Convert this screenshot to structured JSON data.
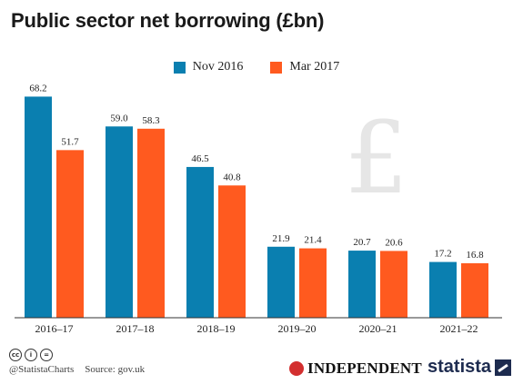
{
  "chart_data": {
    "type": "bar",
    "title": "Public sector net borrowing (£bn)",
    "categories": [
      "2016–17",
      "2017–18",
      "2018–19",
      "2019–20",
      "2020–21",
      "2021–22"
    ],
    "series": [
      {
        "name": "Nov 2016",
        "values": [
          68.2,
          59.0,
          46.5,
          21.9,
          20.7,
          17.2
        ],
        "color": "#0a7fb0"
      },
      {
        "name": "Mar 2017",
        "values": [
          51.7,
          58.3,
          40.8,
          21.4,
          20.6,
          16.8
        ],
        "color": "#ff5a1f"
      }
    ],
    "value_labels": [
      [
        "68.2",
        "59.0",
        "46.5",
        "21.9",
        "20.7",
        "17.2"
      ],
      [
        "51.7",
        "58.3",
        "40.8",
        "21.4",
        "20.6",
        "16.8"
      ]
    ],
    "ylim": [
      0,
      70
    ],
    "grid": false,
    "legend": "top-center",
    "watermark": "£"
  },
  "footer": {
    "credit": "@StatistaCharts",
    "source": "Source: gov.uk",
    "publisher": "INDEPENDENT",
    "brand": "statista",
    "cc_icons": [
      "cc",
      "i",
      "="
    ]
  }
}
